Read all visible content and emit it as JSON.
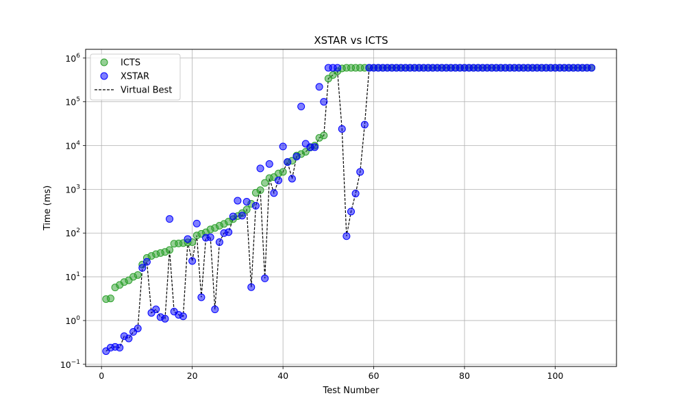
{
  "chart_data": {
    "type": "scatter",
    "title": "XSTAR vs ICTS",
    "xlabel": "Test Number",
    "ylabel": "Time (ms)",
    "xlim": [
      -3.5,
      113.5
    ],
    "ylim_log10": [
      -1.05,
      6.2
    ],
    "yscale": "log",
    "grid": true,
    "legend_position": "top-left",
    "x_ticks": [
      0,
      20,
      40,
      60,
      80,
      100
    ],
    "y_ticks": [
      {
        "base": "10",
        "exp": "−1",
        "log10": -1
      },
      {
        "base": "10",
        "exp": "0",
        "log10": 0
      },
      {
        "base": "10",
        "exp": "1",
        "log10": 1
      },
      {
        "base": "10",
        "exp": "2",
        "log10": 2
      },
      {
        "base": "10",
        "exp": "3",
        "log10": 3
      },
      {
        "base": "10",
        "exp": "4",
        "log10": 4
      },
      {
        "base": "10",
        "exp": "5",
        "log10": 5
      },
      {
        "base": "10",
        "exp": "6",
        "log10": 6
      }
    ],
    "series": [
      {
        "name": "ICTS",
        "kind": "scatter",
        "color": "#2ca02c",
        "x": [
          1,
          2,
          3,
          4,
          5,
          6,
          7,
          8,
          9,
          10,
          11,
          12,
          13,
          14,
          15,
          16,
          17,
          18,
          19,
          20,
          21,
          22,
          23,
          24,
          25,
          26,
          27,
          28,
          29,
          30,
          31,
          32,
          33,
          34,
          35,
          36,
          37,
          38,
          39,
          40,
          41,
          42,
          43,
          44,
          45,
          46,
          47,
          48,
          49,
          50,
          51,
          52,
          53,
          54,
          55,
          56,
          57,
          58,
          59,
          60,
          61,
          62,
          63,
          64,
          65,
          66,
          67,
          68,
          69,
          70,
          71,
          72,
          73,
          74,
          75,
          76,
          77,
          78,
          79,
          80,
          81,
          82,
          83,
          84,
          85,
          86,
          87,
          88,
          89,
          90,
          91,
          92,
          93,
          94,
          95,
          96,
          97,
          98,
          99,
          100,
          101,
          102,
          103,
          104,
          105,
          106,
          107,
          108
        ],
        "y": [
          3.1,
          3.2,
          5.7,
          6.5,
          7.6,
          8.3,
          10,
          11,
          19,
          27,
          30,
          33,
          35,
          37,
          41,
          57,
          58,
          59,
          61,
          62,
          88,
          96,
          104,
          121,
          131,
          147,
          162,
          183,
          208,
          244,
          285,
          343,
          466,
          833,
          955,
          1400,
          1800,
          1900,
          2300,
          2500,
          4200,
          4500,
          5900,
          6400,
          7200,
          9000,
          10000,
          15000,
          17000,
          340000,
          410000,
          500000,
          580000,
          600000,
          600000,
          600000,
          600000,
          600000,
          600000,
          600000,
          600000,
          600000,
          600000,
          600000,
          600000,
          600000,
          600000,
          600000,
          600000,
          600000,
          600000,
          600000,
          600000,
          600000,
          600000,
          600000,
          600000,
          600000,
          600000,
          600000,
          600000,
          600000,
          600000,
          600000,
          600000,
          600000,
          600000,
          600000,
          600000,
          600000,
          600000,
          600000,
          600000,
          600000,
          600000,
          600000,
          600000,
          600000,
          600000,
          600000,
          600000,
          600000,
          600000,
          600000,
          600000,
          600000,
          600000,
          600000
        ]
      },
      {
        "name": "XSTAR",
        "kind": "scatter",
        "color": "#0000ff",
        "x": [
          1,
          2,
          3,
          4,
          5,
          6,
          7,
          8,
          9,
          10,
          11,
          12,
          13,
          14,
          15,
          16,
          17,
          18,
          19,
          20,
          21,
          22,
          23,
          24,
          25,
          26,
          27,
          28,
          29,
          30,
          31,
          32,
          33,
          34,
          35,
          36,
          37,
          38,
          39,
          40,
          41,
          42,
          43,
          44,
          45,
          46,
          47,
          48,
          49,
          50,
          51,
          52,
          53,
          54,
          55,
          56,
          57,
          58,
          59,
          60,
          61,
          62,
          63,
          64,
          65,
          66,
          67,
          68,
          69,
          70,
          71,
          72,
          73,
          74,
          75,
          76,
          77,
          78,
          79,
          80,
          81,
          82,
          83,
          84,
          85,
          86,
          87,
          88,
          89,
          90,
          91,
          92,
          93,
          94,
          95,
          96,
          97,
          98,
          99,
          100,
          101,
          102,
          103,
          104,
          105,
          106,
          107,
          108
        ],
        "y": [
          0.2,
          0.24,
          0.25,
          0.24,
          0.44,
          0.39,
          0.55,
          0.66,
          16,
          22,
          1.5,
          1.8,
          1.2,
          1.1,
          210,
          1.6,
          1.35,
          1.25,
          73,
          23,
          165,
          3.4,
          78,
          80,
          1.8,
          62,
          100,
          105,
          240,
          550,
          250,
          520,
          5.8,
          420,
          3000,
          9.2,
          3800,
          820,
          1600,
          9500,
          4200,
          1750,
          5600,
          78000,
          11000,
          9200,
          9200,
          220000,
          100000,
          600000,
          600000,
          600000,
          24000,
          85,
          310,
          800,
          2500,
          30000,
          600000,
          600000,
          600000,
          600000,
          600000,
          600000,
          600000,
          600000,
          600000,
          600000,
          600000,
          600000,
          600000,
          600000,
          600000,
          600000,
          600000,
          600000,
          600000,
          600000,
          600000,
          600000,
          600000,
          600000,
          600000,
          600000,
          600000,
          600000,
          600000,
          600000,
          600000,
          600000,
          600000,
          600000,
          600000,
          600000,
          600000,
          600000,
          600000,
          600000,
          600000,
          600000,
          600000,
          600000,
          600000,
          600000,
          600000,
          600000,
          600000,
          600000
        ]
      },
      {
        "name": "Virtual Best",
        "kind": "line",
        "color": "#000000",
        "dash": "dashed",
        "x": [
          1,
          2,
          3,
          4,
          5,
          6,
          7,
          8,
          9,
          10,
          11,
          12,
          13,
          14,
          15,
          16,
          17,
          18,
          19,
          20,
          21,
          22,
          23,
          24,
          25,
          26,
          27,
          28,
          29,
          30,
          31,
          32,
          33,
          34,
          35,
          36,
          37,
          38,
          39,
          40,
          41,
          42,
          43,
          44,
          45,
          46,
          47,
          48,
          49,
          50,
          51,
          52,
          53,
          54,
          55,
          56,
          57,
          58,
          59,
          60,
          61,
          62,
          63,
          64,
          65,
          66,
          67,
          68,
          69,
          70,
          71,
          72,
          73,
          74,
          75,
          76,
          77,
          78,
          79,
          80,
          81,
          82,
          83,
          84,
          85,
          86,
          87,
          88,
          89,
          90,
          91,
          92,
          93,
          94,
          95,
          96,
          97,
          98,
          99,
          100,
          101,
          102,
          103,
          104,
          105,
          106,
          107,
          108
        ],
        "y": [
          0.2,
          0.24,
          0.25,
          0.24,
          0.44,
          0.39,
          0.55,
          0.66,
          16,
          22,
          1.5,
          1.8,
          1.2,
          1.1,
          41,
          1.6,
          1.35,
          1.25,
          61,
          23,
          88,
          3.4,
          78,
          80,
          1.8,
          62,
          100,
          105,
          208,
          244,
          250,
          343,
          5.8,
          420,
          955,
          9.2,
          1800,
          820,
          1600,
          2500,
          4200,
          1750,
          5600,
          6400,
          7200,
          9000,
          9200,
          15000,
          17000,
          340000,
          410000,
          500000,
          24000,
          85,
          310,
          800,
          2500,
          30000,
          600000,
          600000,
          600000,
          600000,
          600000,
          600000,
          600000,
          600000,
          600000,
          600000,
          600000,
          600000,
          600000,
          600000,
          600000,
          600000,
          600000,
          600000,
          600000,
          600000,
          600000,
          600000,
          600000,
          600000,
          600000,
          600000,
          600000,
          600000,
          600000,
          600000,
          600000,
          600000,
          600000,
          600000,
          600000,
          600000,
          600000,
          600000,
          600000,
          600000,
          600000,
          600000,
          600000,
          600000,
          600000,
          600000,
          600000,
          600000,
          600000,
          600000
        ]
      }
    ]
  }
}
